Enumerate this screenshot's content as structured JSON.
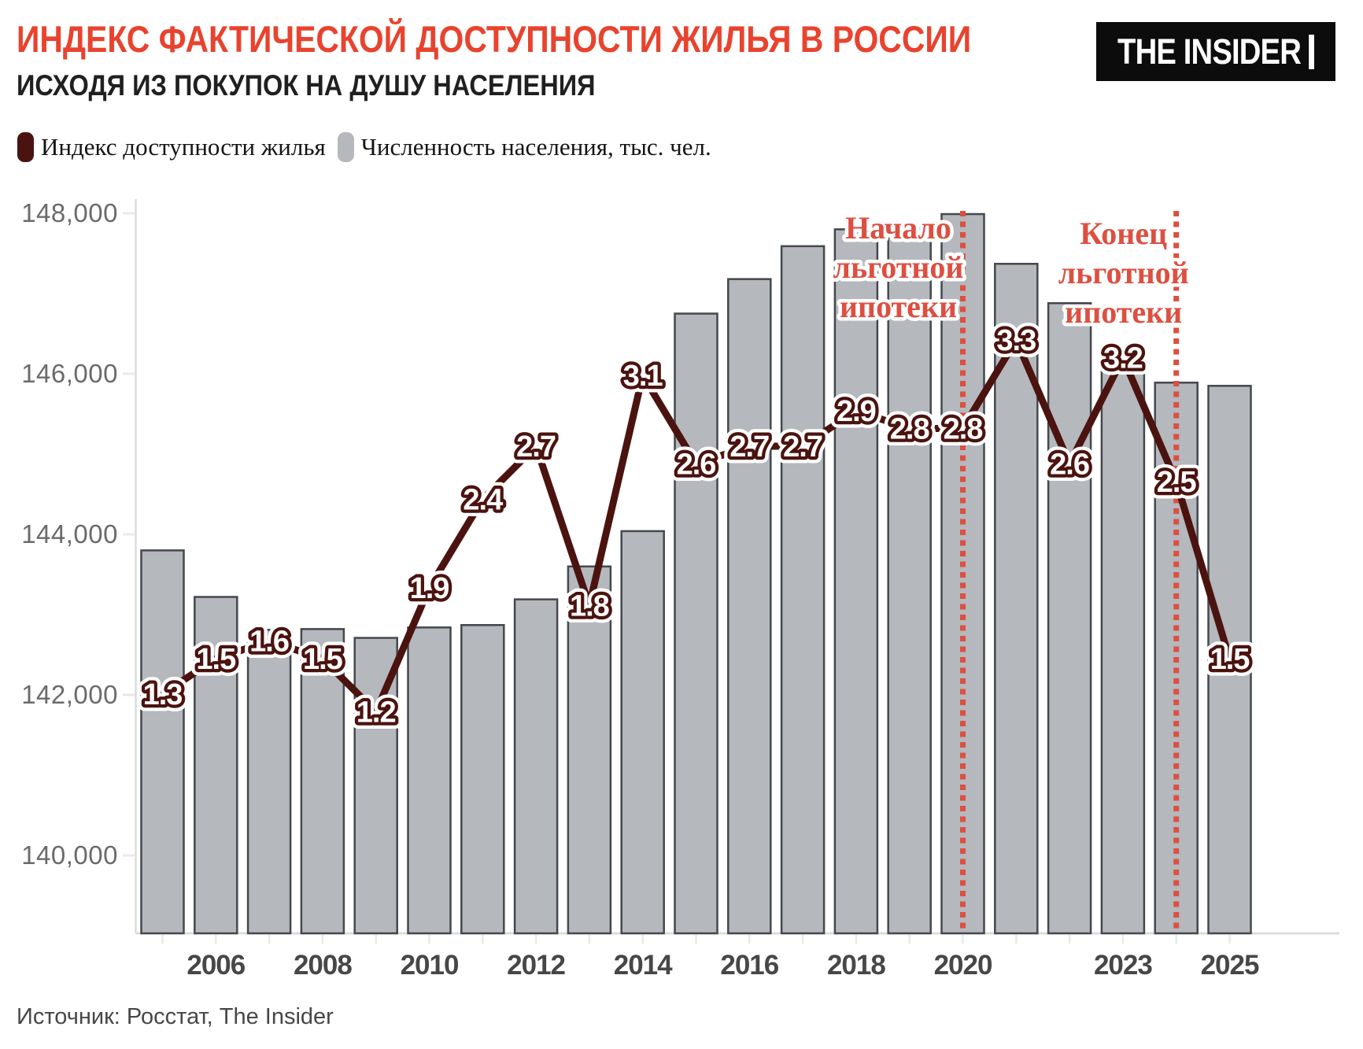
{
  "header": {
    "title": "ИНДЕКС ФАКТИЧЕСКОЙ ДОСТУПНОСТИ ЖИЛЬЯ В РОССИИ",
    "subtitle": "ИСХОДЯ ИЗ ПОКУПОК НА ДУШУ НАСЕЛЕНИЯ",
    "logo_text": "THE INSIDER"
  },
  "legend": {
    "items": [
      {
        "label": "Индекс доступности жилья",
        "swatch_color": "#4b130f"
      },
      {
        "label": "Численность населения, тыс. чел.",
        "swatch_color": "#b5b8bc"
      }
    ]
  },
  "source": "Источник: Росстат, The Insider",
  "colors": {
    "title_red": "#e8432e",
    "annotation_red": "#dd4f41",
    "dotted_line_red": "#dd4f41",
    "index_line": "#4b130f",
    "bar_fill": "#b5b8bc",
    "bar_stroke": "#44484e",
    "axis_line": "#dcdcdc",
    "tick_mark": "#e9e9e9",
    "y_label_color": "#6b6b6b",
    "x_label_color": "#474747",
    "label_fill": "#ffffff"
  },
  "chart_data": {
    "type": "bar+line",
    "title": "ИНДЕКС ФАКТИЧЕСКОЙ ДОСТУПНОСТИ ЖИЛЬЯ В РОССИИ",
    "subtitle": "ИСХОДЯ ИЗ ПОКУПОК НА ДУШУ НАСЕЛЕНИЯ",
    "categories": [
      2005,
      2006,
      2007,
      2008,
      2009,
      2010,
      2011,
      2012,
      2013,
      2014,
      2015,
      2016,
      2017,
      2018,
      2019,
      2020,
      2021,
      2022,
      2023,
      2024,
      2025
    ],
    "series": [
      {
        "name": "Индекс доступности жилья",
        "type": "line",
        "values": [
          1.3,
          1.5,
          1.6,
          1.5,
          1.2,
          1.9,
          2.4,
          2.7,
          1.8,
          3.1,
          2.6,
          2.7,
          2.7,
          2.9,
          2.8,
          2.8,
          3.3,
          2.6,
          3.2,
          2.5,
          1.5
        ]
      },
      {
        "name": "Численность населения, тыс. чел.",
        "type": "bar",
        "values": [
          143800,
          143220,
          142810,
          142820,
          142710,
          142840,
          142870,
          143190,
          143600,
          144040,
          146750,
          147180,
          147590,
          147800,
          147840,
          147990,
          147370,
          146880,
          146230,
          145890,
          145850
        ]
      }
    ],
    "y_axis": {
      "ticks": [
        140000,
        142000,
        144000,
        146000,
        148000
      ],
      "tick_labels": [
        "140,000",
        "142,000",
        "144,000",
        "146,000",
        "148,000"
      ],
      "min": 139030,
      "max": 148170
    },
    "index_axis": {
      "min": 0,
      "max": 4.07
    },
    "x_tick_labels": [
      "2006",
      "2008",
      "2010",
      "2012",
      "2014",
      "2016",
      "2018",
      "2020",
      "2023",
      "2025"
    ],
    "annotations": [
      {
        "year": 2020,
        "lines": [
          "Начало",
          "льготной",
          "ипотеки"
        ]
      },
      {
        "year": 2024,
        "lines": [
          "Конец",
          "льготной",
          "ипотеки"
        ]
      }
    ],
    "legend_position": "top-left",
    "grid": false
  }
}
